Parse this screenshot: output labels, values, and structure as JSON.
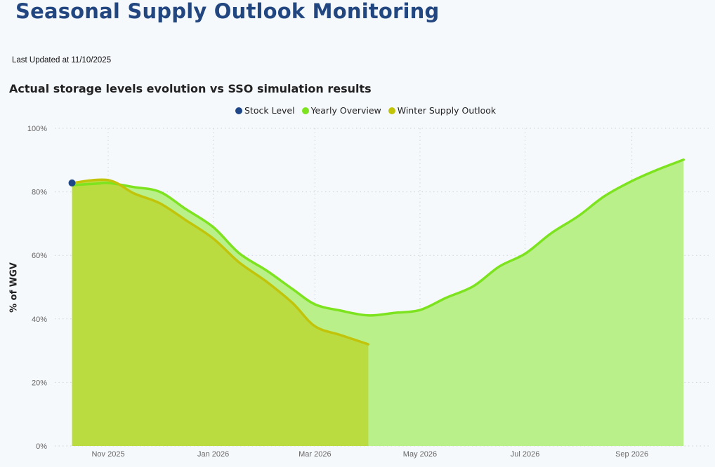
{
  "header": {
    "title": "Seasonal Supply Outlook Monitoring",
    "last_updated": "Last Updated at 11/10/2025"
  },
  "colors": {
    "title": "#22467f",
    "stock_level": "#1f4788",
    "yearly_overview_line": "#7de31f",
    "yearly_overview_fill": "#b9f089",
    "winter_outlook_line": "#c2c40a",
    "winter_outlook_fill": "#bbdc41",
    "grid": "#cfd3d8"
  },
  "chart_data": {
    "type": "area",
    "title": "Actual storage levels evolution vs SSO simulation results",
    "xlabel": "",
    "ylabel": "% of WGV",
    "ylim": [
      0,
      100
    ],
    "yticks": [
      0,
      20,
      40,
      60,
      80,
      100
    ],
    "ytick_labels": [
      "0%",
      "20%",
      "40%",
      "60%",
      "80%",
      "100%"
    ],
    "x_type": "date",
    "xlim": [
      "2025-10-01",
      "2026-10-16"
    ],
    "xticks": [
      "2025-11-01",
      "2026-01-01",
      "2026-03-01",
      "2026-05-01",
      "2026-07-01",
      "2026-09-01"
    ],
    "xtick_labels": [
      "Nov 2025",
      "Jan 2026",
      "Mar 2026",
      "May 2026",
      "Jul 2026",
      "Sep 2026"
    ],
    "grid": true,
    "legend_position": "top-center",
    "legend": [
      "Stock Level",
      "Yearly Overview",
      "Winter Supply Outlook"
    ],
    "series": [
      {
        "name": "Stock Level",
        "kind": "point",
        "x": [
          "2025-10-11"
        ],
        "values": [
          82.8
        ]
      },
      {
        "name": "Yearly Overview",
        "kind": "area",
        "x": [
          "2025-10-11",
          "2025-10-26",
          "2025-11-01",
          "2025-11-16",
          "2025-12-01",
          "2025-12-16",
          "2026-01-01",
          "2026-01-16",
          "2026-02-01",
          "2026-02-16",
          "2026-03-01",
          "2026-03-16",
          "2026-04-01",
          "2026-04-16",
          "2026-05-01",
          "2026-05-16",
          "2026-06-01",
          "2026-06-16",
          "2026-07-01",
          "2026-07-16",
          "2026-08-01",
          "2026-08-16",
          "2026-09-01",
          "2026-09-16",
          "2026-10-01"
        ],
        "values": [
          82.1,
          82.6,
          82.8,
          81.5,
          80.0,
          74.6,
          68.9,
          60.7,
          55.2,
          49.4,
          44.6,
          42.6,
          41.1,
          41.9,
          42.8,
          46.6,
          50.3,
          56.5,
          60.5,
          66.9,
          72.4,
          78.6,
          83.4,
          87.0,
          90.1
        ]
      },
      {
        "name": "Winter Supply Outlook",
        "kind": "area",
        "x": [
          "2025-10-11",
          "2025-11-01",
          "2025-11-16",
          "2025-12-01",
          "2025-12-16",
          "2026-01-01",
          "2026-01-16",
          "2026-02-01",
          "2026-02-16",
          "2026-03-01",
          "2026-03-16",
          "2026-04-01"
        ],
        "values": [
          82.8,
          83.7,
          79.5,
          76.4,
          71.1,
          65.3,
          57.8,
          51.7,
          45.0,
          37.7,
          34.9,
          32.0
        ]
      }
    ]
  }
}
